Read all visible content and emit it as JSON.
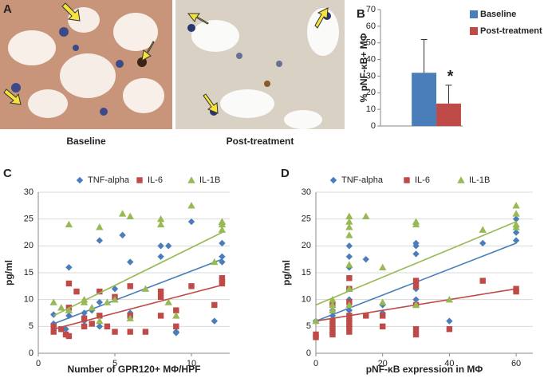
{
  "figure_a": {
    "panel": "A",
    "captions": [
      "Baseline",
      "Post-treatment"
    ]
  },
  "chart_data": [
    {
      "type": "bar",
      "panel": "B",
      "ylabel": "% pNF-κB+ MΦ",
      "categories": [
        null
      ],
      "series": [
        {
          "name": "Baseline",
          "color": "#4a7ebb",
          "values": [
            32
          ],
          "errors": [
            20
          ]
        },
        {
          "name": "Post-treatment",
          "color": "#be4b48",
          "values": [
            13.5
          ],
          "errors": [
            11
          ],
          "annotation": "*"
        }
      ],
      "ylim": [
        0,
        70
      ],
      "yticks": [
        0,
        10,
        20,
        30,
        40,
        50,
        60,
        70
      ],
      "grid": false,
      "legend": "right"
    },
    {
      "type": "scatter",
      "panel": "C",
      "xlabel": "Number of GPR120+ MΦ/HPF",
      "ylabel": "pg/ml",
      "xlim": [
        0,
        12.5
      ],
      "xticks": [
        0,
        5,
        10
      ],
      "ylim": [
        0,
        30
      ],
      "yticks": [
        0,
        5,
        10,
        15,
        20,
        25,
        30
      ],
      "grid": true,
      "legend": "top",
      "series": [
        {
          "name": "TNF-alpha",
          "color": "#4a7ebb",
          "marker": "diamond",
          "x": [
            1,
            1,
            1.5,
            1.8,
            2,
            1.8,
            2,
            3,
            3,
            3.5,
            4,
            4,
            4,
            5,
            5.5,
            6,
            6,
            8,
            8,
            8.5,
            9,
            9,
            10,
            11.5,
            12,
            12,
            12,
            12
          ],
          "y": [
            7.2,
            5.5,
            4.5,
            4.5,
            16,
            3.5,
            7,
            6,
            7.5,
            8,
            21,
            9.5,
            5,
            12,
            22,
            17,
            7.5,
            18,
            20,
            20,
            3.8,
            4,
            24.5,
            6,
            20.5,
            18,
            13.5,
            17
          ],
          "trend_x": [
            1,
            12
          ],
          "trend_y": [
            5.5,
            17.5
          ]
        },
        {
          "name": "IL-6",
          "color": "#be4b48",
          "marker": "square",
          "x": [
            1,
            1,
            1.5,
            1.8,
            2,
            2,
            2,
            2.5,
            3,
            3,
            3.5,
            4,
            4,
            4.5,
            5,
            5,
            6,
            6,
            6,
            7,
            8,
            8,
            8,
            9,
            9,
            10,
            11.5,
            12,
            12,
            12
          ],
          "y": [
            5,
            4,
            4.5,
            3.5,
            3.2,
            13,
            8.5,
            11.5,
            5,
            6.5,
            5.5,
            11.5,
            7,
            5,
            4,
            10.5,
            12.5,
            7,
            4,
            4,
            10.5,
            11.5,
            7,
            8,
            5,
            12.5,
            9,
            14,
            13.5,
            13
          ],
          "trend_x": [
            1,
            12
          ],
          "trend_y": [
            4.5,
            12.7
          ]
        },
        {
          "name": "IL-1B",
          "color": "#98b954",
          "marker": "triangle",
          "x": [
            1,
            1.5,
            2,
            2,
            3,
            3,
            3.5,
            4,
            4,
            4.5,
            5,
            5.5,
            6,
            6,
            7,
            8,
            8,
            8.5,
            9,
            10,
            11.5,
            12,
            12,
            12,
            12
          ],
          "y": [
            9.5,
            8.5,
            24,
            8,
            9.5,
            10,
            8.5,
            23.5,
            6,
            9.5,
            10,
            26,
            25.5,
            6.5,
            12,
            24,
            25,
            9.5,
            7,
            27.5,
            17,
            24.5,
            24,
            23,
            24.5
          ],
          "trend_x": [
            1,
            12
          ],
          "trend_y": [
            7,
            22.5
          ]
        }
      ]
    },
    {
      "type": "scatter",
      "panel": "D",
      "xlabel": "pNF-κB expression in MΦ",
      "ylabel": "pg/ml",
      "xlim": [
        0,
        65
      ],
      "xticks": [
        0,
        20,
        40,
        60
      ],
      "ylim": [
        0,
        30
      ],
      "yticks": [
        0,
        5,
        10,
        15,
        20,
        25,
        30
      ],
      "grid": true,
      "legend": "top",
      "series": [
        {
          "name": "TNF-alpha",
          "color": "#4a7ebb",
          "marker": "diamond",
          "x": [
            0,
            5,
            5,
            5,
            10,
            10,
            10,
            10,
            10,
            10,
            10,
            10,
            15,
            20,
            20,
            30,
            30,
            30,
            30,
            30,
            40,
            50,
            60,
            60,
            60
          ],
          "y": [
            6,
            8,
            7,
            4.5,
            20,
            18,
            16,
            12,
            10,
            8,
            6,
            5,
            17.5,
            9,
            7.5,
            20.5,
            20,
            18.5,
            12,
            10,
            6,
            20.5,
            25,
            22.5,
            21
          ],
          "trend_x": [
            0,
            60
          ],
          "trend_y": [
            6,
            20.5
          ]
        },
        {
          "name": "IL-6",
          "color": "#be4b48",
          "marker": "square",
          "x": [
            0,
            0,
            5,
            5,
            5,
            5,
            5,
            10,
            10,
            10,
            10,
            10,
            10,
            10,
            15,
            20,
            20,
            30,
            30,
            30,
            30,
            30,
            40,
            50,
            60,
            60
          ],
          "y": [
            3.5,
            3,
            9,
            6,
            5,
            4,
            3.5,
            14,
            12,
            9.5,
            7,
            6,
            5,
            4,
            7,
            7,
            5,
            13.5,
            12.5,
            9,
            4.5,
            3.5,
            4.5,
            13.5,
            12,
            11.5
          ],
          "trend_x": [
            0,
            60
          ],
          "trend_y": [
            6,
            12
          ]
        },
        {
          "name": "IL-1B",
          "color": "#98b954",
          "marker": "triangle",
          "x": [
            0,
            5,
            5,
            5,
            10,
            10,
            10,
            10,
            10,
            10,
            10,
            15,
            20,
            20,
            30,
            30,
            30,
            40,
            50,
            60,
            60,
            60,
            60
          ],
          "y": [
            6,
            10,
            9,
            8,
            25.5,
            24.5,
            23.5,
            22,
            16.5,
            12,
            9,
            25.5,
            16,
            9.5,
            24.5,
            24,
            9,
            10,
            23,
            27.5,
            26,
            24,
            23.5
          ],
          "trend_x": [
            0,
            60
          ],
          "trend_y": [
            9,
            24.5
          ]
        }
      ]
    }
  ]
}
